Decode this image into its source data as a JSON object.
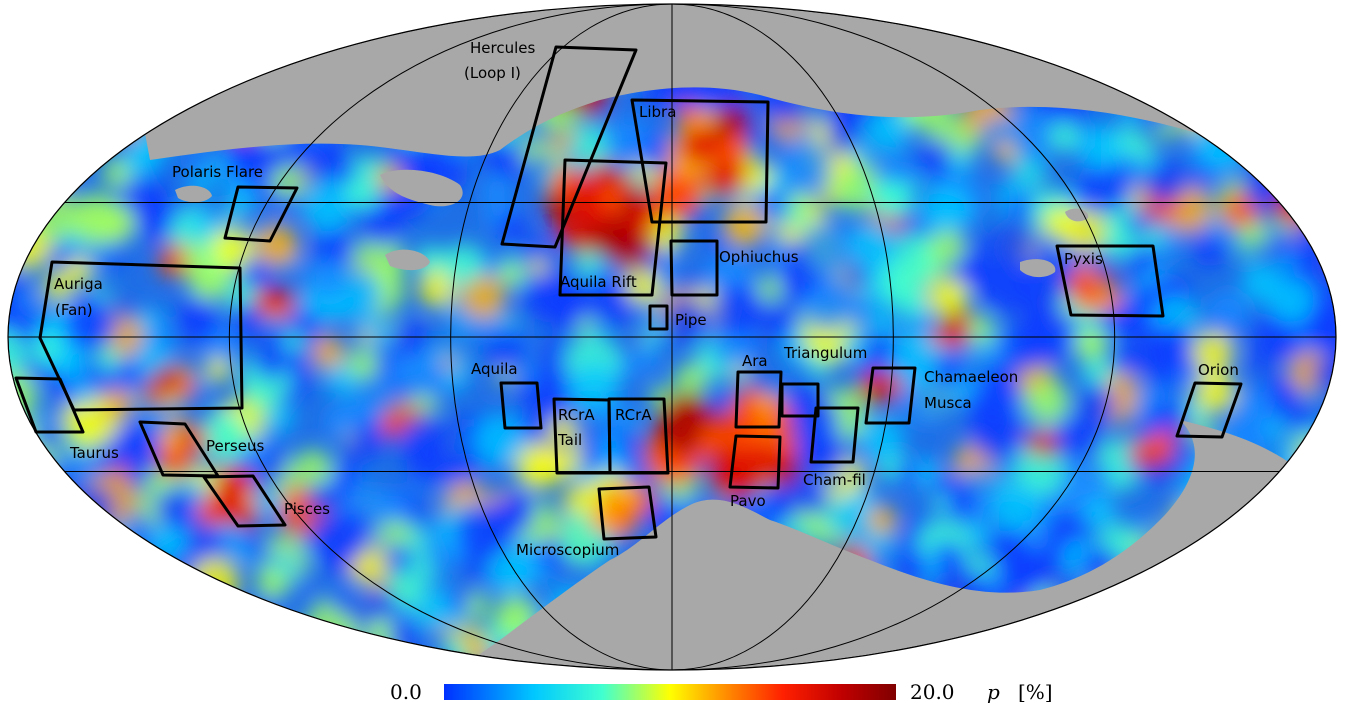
{
  "map": {
    "projection": "mollweide",
    "graticule": true,
    "masked_color": "#a8a8a8",
    "regions": [
      {
        "name": "Hercules",
        "name2": "(Loop I)"
      },
      {
        "name": "Libra"
      },
      {
        "name": "Polaris Flare"
      },
      {
        "name": "Ophiuchus"
      },
      {
        "name": "Aquila Rift"
      },
      {
        "name": "Pyxis"
      },
      {
        "name": "Auriga",
        "name2": "(Fan)"
      },
      {
        "name": "Pipe"
      },
      {
        "name": "Triangulum"
      },
      {
        "name": "Aquila"
      },
      {
        "name": "Ara"
      },
      {
        "name": "Chamaeleon",
        "name2": "Musca"
      },
      {
        "name": "Orion"
      },
      {
        "name": "RCrA",
        "name2": "Tail"
      },
      {
        "name": "RCrA"
      },
      {
        "name": "Taurus"
      },
      {
        "name": "Perseus"
      },
      {
        "name": "Cham-fil"
      },
      {
        "name": "Pisces"
      },
      {
        "name": "Pavo"
      },
      {
        "name": "Microscopium"
      }
    ]
  },
  "colorbar": {
    "min_label": "0.0",
    "max_label": "20.0",
    "symbol": "p",
    "unit": "[%]",
    "colors": [
      "#0030ff",
      "#00c8ff",
      "#40ffd0",
      "#ffff00",
      "#ff9000",
      "#ff2000",
      "#c00000",
      "#800000"
    ]
  }
}
